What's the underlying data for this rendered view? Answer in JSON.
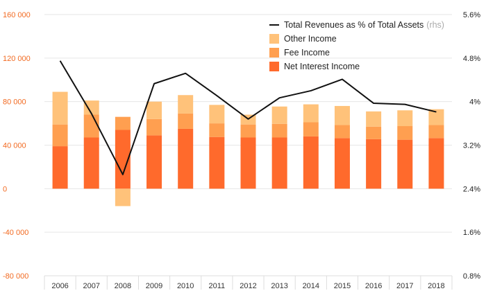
{
  "colors": {
    "net_interest": "#ff6a2c",
    "fee": "#ff9f50",
    "other": "#ffc27a",
    "line": "#111111",
    "left_axis_text": "#f26a21",
    "grid": "#e6e6e6"
  },
  "chart_data": {
    "type": "bar",
    "stacked": true,
    "categories": [
      "2006",
      "2007",
      "2008",
      "2009",
      "2010",
      "2011",
      "2012",
      "2013",
      "2014",
      "2015",
      "2016",
      "2017",
      "2018"
    ],
    "series": [
      {
        "name": "Net Interest Income",
        "color_key": "net_interest",
        "values": [
          39000,
          47000,
          54000,
          49000,
          55000,
          47500,
          47000,
          47000,
          48000,
          46500,
          45500,
          45000,
          46500
        ]
      },
      {
        "name": "Fee Income",
        "color_key": "fee",
        "values": [
          20000,
          21000,
          12000,
          15000,
          14000,
          12500,
          12000,
          12500,
          13000,
          12000,
          11500,
          12500,
          12000
        ]
      },
      {
        "name": "Other Income",
        "color_key": "other",
        "values": [
          30000,
          13000,
          -16000,
          16000,
          17000,
          17000,
          9000,
          16000,
          16500,
          17500,
          14000,
          14500,
          14500
        ]
      }
    ],
    "line_series": {
      "name": "Total Revenues as % of Total Assets",
      "name_suffix": "(rhs)",
      "axis": "right",
      "values": [
        4.75,
        3.78,
        2.66,
        4.33,
        4.52,
        4.11,
        3.68,
        4.07,
        4.2,
        4.41,
        3.97,
        3.95,
        3.81
      ]
    },
    "y_left": {
      "min": -80000,
      "max": 160000,
      "ticks": [
        -80000,
        -40000,
        0,
        40000,
        80000,
        120000,
        160000
      ],
      "tick_labels": [
        "-80 000",
        "-40 000",
        "0",
        "40 000",
        "80 000",
        "120 000",
        "160 000"
      ]
    },
    "y_right": {
      "min": 0.8,
      "max": 5.6,
      "ticks": [
        0.8,
        1.6,
        2.4,
        3.2,
        4,
        4.8,
        5.6
      ],
      "tick_labels": [
        "0.8%",
        "1.6%",
        "2.4%",
        "3.2%",
        "4%",
        "4.8%",
        "5.6%"
      ]
    },
    "legend_order": [
      "line",
      "Other Income",
      "Fee Income",
      "Net Interest Income"
    ],
    "legend_position": "top-right",
    "grid": true
  }
}
